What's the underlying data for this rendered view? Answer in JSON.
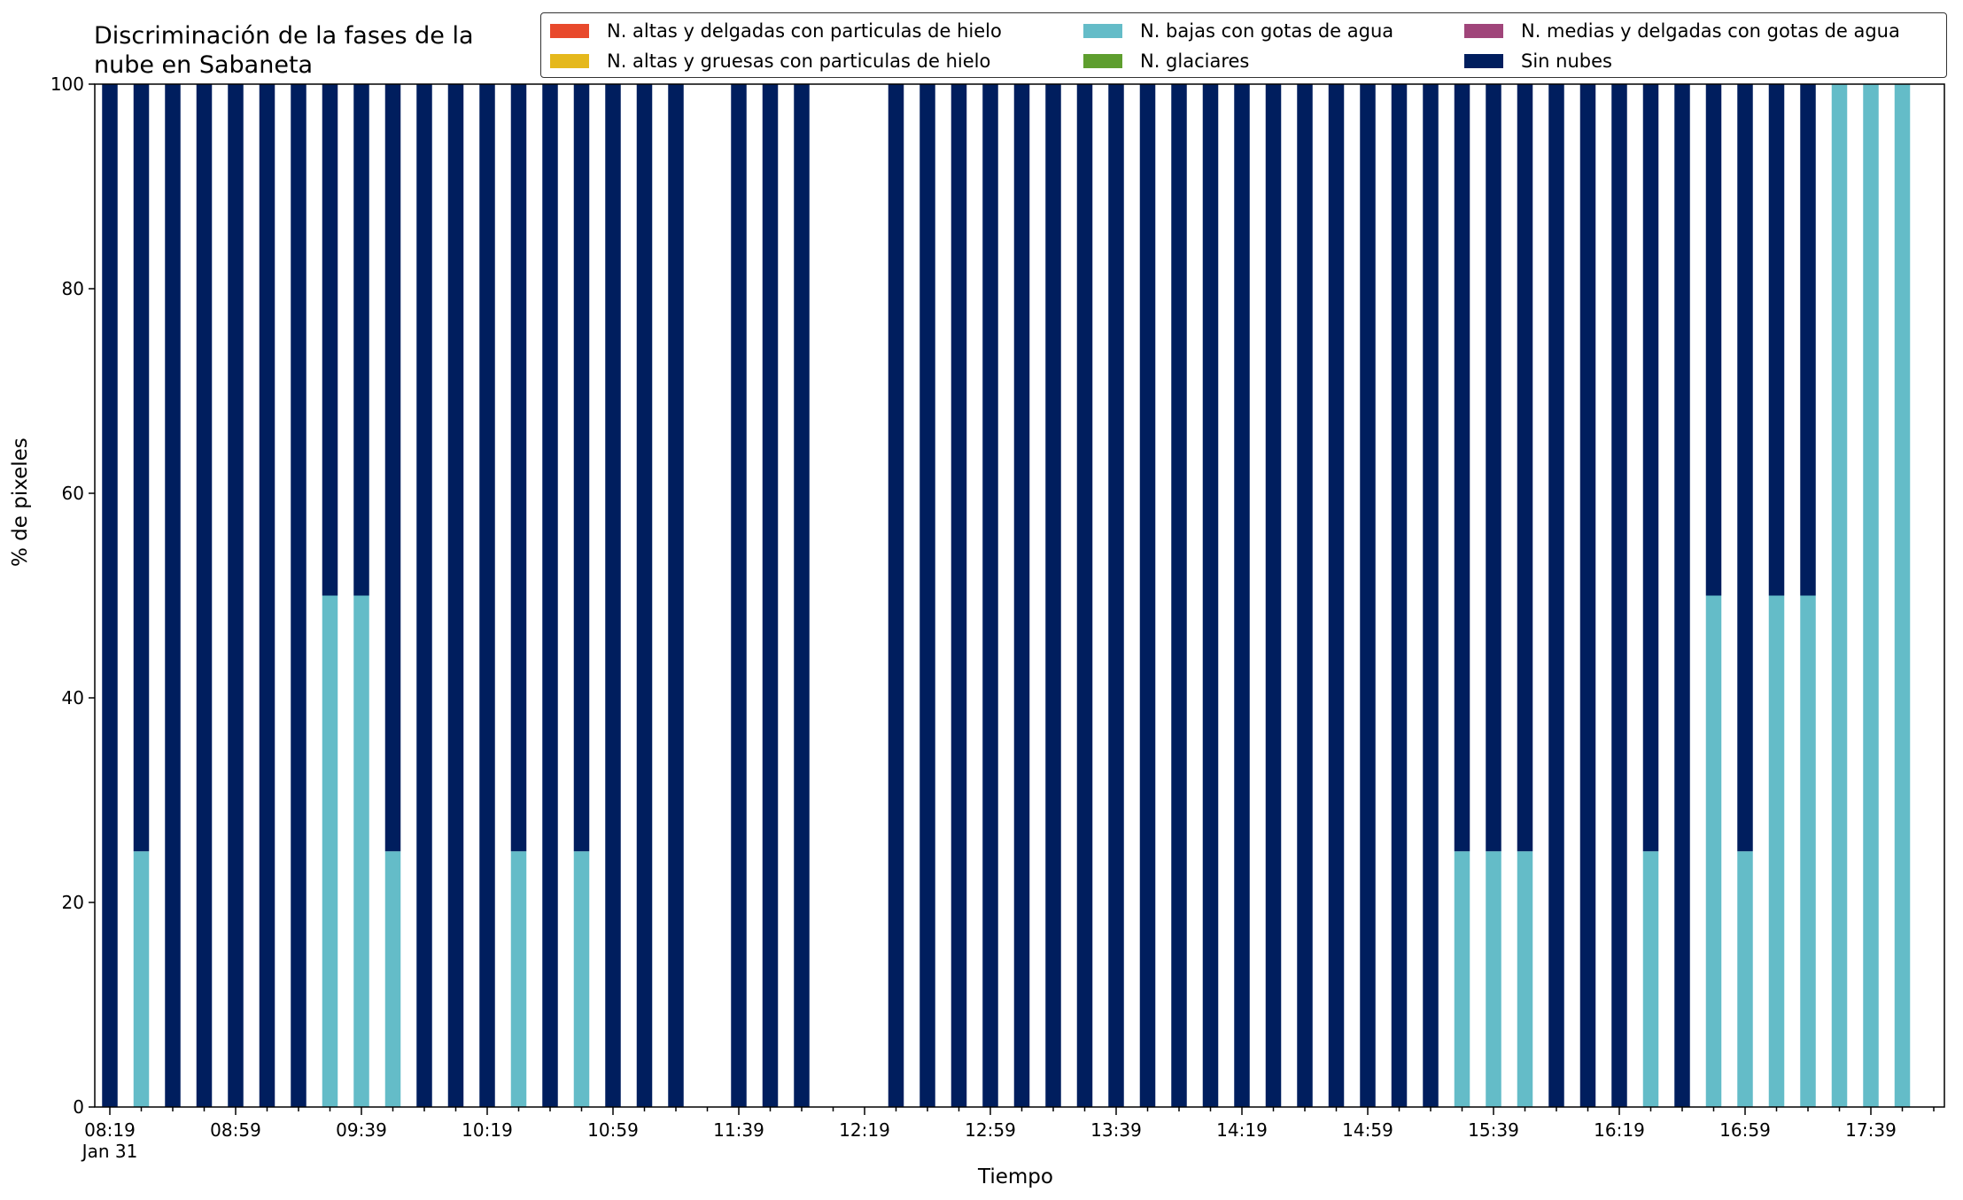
{
  "chart_data": {
    "type": "bar",
    "stacked": true,
    "title": "Discriminación de la fases de la\nnube en Sabaneta",
    "xlabel": "Tiempo",
    "ylabel": "% de pixeles",
    "ylim": [
      0,
      100
    ],
    "yticks": [
      0,
      20,
      40,
      60,
      80,
      100
    ],
    "grid": false,
    "legend_position": "top-right",
    "x_tick_labels": [
      "08:19\nJan 31",
      "08:59",
      "09:39",
      "10:19",
      "10:59",
      "11:39",
      "12:19",
      "12:59",
      "13:39",
      "14:19",
      "14:59",
      "15:39",
      "16:19",
      "16:59",
      "17:39"
    ],
    "x_tick_label_every": 4,
    "categories": [
      "08:19",
      "08:29",
      "08:39",
      "08:49",
      "08:59",
      "09:09",
      "09:19",
      "09:29",
      "09:39",
      "09:49",
      "09:59",
      "10:09",
      "10:19",
      "10:29",
      "10:39",
      "10:49",
      "10:59",
      "11:09",
      "11:19",
      "11:29",
      "11:39",
      "11:49",
      "11:59",
      "12:09",
      "12:19",
      "12:29",
      "12:39",
      "12:49",
      "12:59",
      "13:09",
      "13:19",
      "13:29",
      "13:39",
      "13:49",
      "13:59",
      "14:09",
      "14:19",
      "14:29",
      "14:39",
      "14:49",
      "14:59",
      "15:09",
      "15:19",
      "15:29",
      "15:39",
      "15:49",
      "15:59",
      "16:09",
      "16:19",
      "16:29",
      "16:39",
      "16:49",
      "16:59",
      "17:09",
      "17:19",
      "17:29",
      "17:39",
      "17:49"
    ],
    "series": [
      {
        "name": "N. altas y delgadas con particulas de hielo",
        "color": "#e8492c",
        "values": [
          0,
          0,
          0,
          0,
          0,
          0,
          0,
          0,
          0,
          0,
          0,
          0,
          0,
          0,
          0,
          0,
          0,
          0,
          0,
          0,
          0,
          0,
          0,
          0,
          0,
          0,
          0,
          0,
          0,
          0,
          0,
          0,
          0,
          0,
          0,
          0,
          0,
          0,
          0,
          0,
          0,
          0,
          0,
          0,
          0,
          0,
          0,
          0,
          0,
          0,
          0,
          0,
          0,
          0,
          0,
          0,
          0,
          0
        ]
      },
      {
        "name": "N. altas y gruesas con particulas de hielo",
        "color": "#e5b81c",
        "values": [
          0,
          0,
          0,
          0,
          0,
          0,
          0,
          0,
          0,
          0,
          0,
          0,
          0,
          0,
          0,
          0,
          0,
          0,
          0,
          0,
          0,
          0,
          0,
          0,
          0,
          0,
          0,
          0,
          0,
          0,
          0,
          0,
          0,
          0,
          0,
          0,
          0,
          0,
          0,
          0,
          0,
          0,
          0,
          0,
          0,
          0,
          0,
          0,
          0,
          0,
          0,
          0,
          0,
          0,
          0,
          0,
          0,
          0
        ]
      },
      {
        "name": "N. bajas con gotas de agua",
        "color": "#64bcc8",
        "values": [
          0,
          25,
          0,
          0,
          0,
          0,
          0,
          50,
          50,
          25,
          0,
          0,
          0,
          25,
          0,
          25,
          0,
          0,
          0,
          null,
          0,
          0,
          0,
          null,
          null,
          0,
          0,
          0,
          0,
          0,
          0,
          0,
          0,
          0,
          0,
          0,
          0,
          0,
          0,
          0,
          0,
          0,
          0,
          25,
          25,
          25,
          0,
          0,
          0,
          25,
          0,
          50,
          25,
          50,
          50,
          100,
          100,
          100
        ]
      },
      {
        "name": "N. glaciares",
        "color": "#5e9e2e",
        "values": [
          0,
          0,
          0,
          0,
          0,
          0,
          0,
          0,
          0,
          0,
          0,
          0,
          0,
          0,
          0,
          0,
          0,
          0,
          0,
          0,
          0,
          0,
          0,
          0,
          0,
          0,
          0,
          0,
          0,
          0,
          0,
          0,
          0,
          0,
          0,
          0,
          0,
          0,
          0,
          0,
          0,
          0,
          0,
          0,
          0,
          0,
          0,
          0,
          0,
          0,
          0,
          0,
          0,
          0,
          0,
          0,
          0,
          0
        ]
      },
      {
        "name": "N. medias y delgadas con gotas de agua",
        "color": "#a0457a",
        "values": [
          0,
          0,
          0,
          0,
          0,
          0,
          0,
          0,
          0,
          0,
          0,
          0,
          0,
          0,
          0,
          0,
          0,
          0,
          0,
          0,
          0,
          0,
          0,
          0,
          0,
          0,
          0,
          0,
          0,
          0,
          0,
          0,
          0,
          0,
          0,
          0,
          0,
          0,
          0,
          0,
          0,
          0,
          0,
          0,
          0,
          0,
          0,
          0,
          0,
          0,
          0,
          0,
          0,
          0,
          0,
          0,
          0,
          0
        ]
      },
      {
        "name": "Sin nubes",
        "color": "#001e5e",
        "values": [
          100,
          75,
          100,
          100,
          100,
          100,
          100,
          50,
          50,
          75,
          100,
          100,
          100,
          75,
          100,
          75,
          100,
          100,
          100,
          null,
          100,
          100,
          100,
          null,
          null,
          100,
          100,
          100,
          100,
          100,
          100,
          100,
          100,
          100,
          100,
          100,
          100,
          100,
          100,
          100,
          100,
          100,
          100,
          75,
          75,
          75,
          100,
          100,
          100,
          75,
          100,
          50,
          75,
          50,
          50,
          0,
          0,
          0
        ]
      }
    ]
  }
}
